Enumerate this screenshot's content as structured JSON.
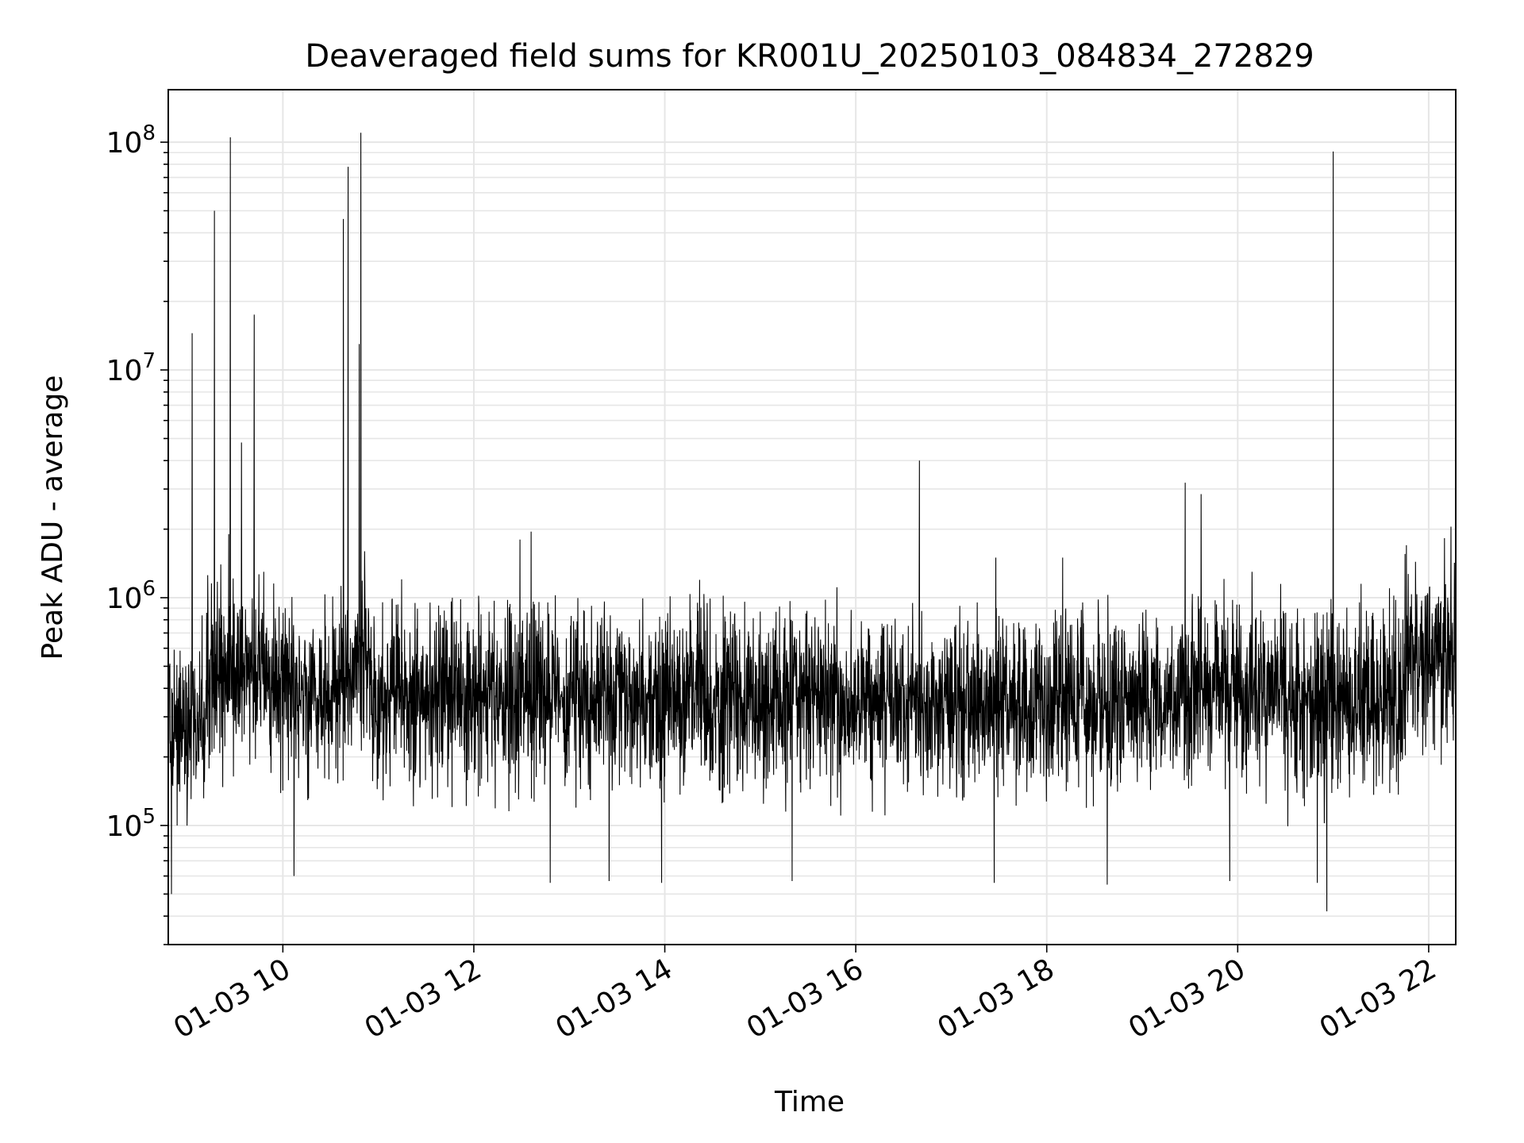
{
  "chart_data": {
    "type": "line",
    "title": "Deaveraged field sums for KR001U_20250103_084834_272829",
    "xlabel": "Time",
    "ylabel": "Peak ADU - average",
    "y_scale": "log",
    "ylim": [
      30000,
      170000000
    ],
    "x_range": [
      "2025-01-03 08:48",
      "2025-01-03 22:17"
    ],
    "grid": true,
    "line_color": "#000000",
    "grid_color": "#e6e6e6",
    "x_ticks": [
      {
        "t": "2025-01-03 10:00",
        "label": "01-03 10"
      },
      {
        "t": "2025-01-03 12:00",
        "label": "01-03 12"
      },
      {
        "t": "2025-01-03 14:00",
        "label": "01-03 14"
      },
      {
        "t": "2025-01-03 16:00",
        "label": "01-03 16"
      },
      {
        "t": "2025-01-03 18:00",
        "label": "01-03 18"
      },
      {
        "t": "2025-01-03 20:00",
        "label": "01-03 20"
      },
      {
        "t": "2025-01-03 22:00",
        "label": "01-03 22"
      }
    ],
    "y_ticks": [
      {
        "value": 100000,
        "base": "10",
        "exp": "5"
      },
      {
        "value": 1000000,
        "base": "10",
        "exp": "6"
      },
      {
        "value": 10000000,
        "base": "10",
        "exp": "7"
      },
      {
        "value": 100000000,
        "base": "10",
        "exp": "8"
      }
    ],
    "baseline_segments": [
      {
        "start": "2025-01-03 08:48",
        "end": "2025-01-03 09:12",
        "level": 280000
      },
      {
        "start": "2025-01-03 09:12",
        "end": "2025-01-03 09:40",
        "level": 450000
      },
      {
        "start": "2025-01-03 09:40",
        "end": "2025-01-03 10:35",
        "level": 380000
      },
      {
        "start": "2025-01-03 10:35",
        "end": "2025-01-03 10:55",
        "level": 480000
      },
      {
        "start": "2025-01-03 10:55",
        "end": "2025-01-03 15:50",
        "level": 370000
      },
      {
        "start": "2025-01-03 15:50",
        "end": "2025-01-03 19:25",
        "level": 340000
      },
      {
        "start": "2025-01-03 19:25",
        "end": "2025-01-03 20:30",
        "level": 390000
      },
      {
        "start": "2025-01-03 20:30",
        "end": "2025-01-03 21:45",
        "level": 340000
      },
      {
        "start": "2025-01-03 21:45",
        "end": "2025-01-03 22:17",
        "level": 560000
      }
    ],
    "spikes": [
      {
        "t": "2025-01-03 09:03",
        "value": 14500000
      },
      {
        "t": "2025-01-03 09:17",
        "value": 50000000
      },
      {
        "t": "2025-01-03 09:21",
        "value": 1400000
      },
      {
        "t": "2025-01-03 09:26",
        "value": 1900000
      },
      {
        "t": "2025-01-03 09:27",
        "value": 105000000
      },
      {
        "t": "2025-01-03 09:34",
        "value": 4800000
      },
      {
        "t": "2025-01-03 09:42",
        "value": 17500000
      },
      {
        "t": "2025-01-03 09:48",
        "value": 1300000
      },
      {
        "t": "2025-01-03 10:38",
        "value": 46000000
      },
      {
        "t": "2025-01-03 10:41",
        "value": 78000000
      },
      {
        "t": "2025-01-03 10:48",
        "value": 13000000
      },
      {
        "t": "2025-01-03 10:49",
        "value": 110000000
      },
      {
        "t": "2025-01-03 12:29",
        "value": 1800000
      },
      {
        "t": "2025-01-03 12:36",
        "value": 1950000
      },
      {
        "t": "2025-01-03 16:40",
        "value": 4000000
      },
      {
        "t": "2025-01-03 17:28",
        "value": 1500000
      },
      {
        "t": "2025-01-03 18:10",
        "value": 1500000
      },
      {
        "t": "2025-01-03 19:27",
        "value": 3200000
      },
      {
        "t": "2025-01-03 19:37",
        "value": 2850000
      },
      {
        "t": "2025-01-03 20:09",
        "value": 1300000
      },
      {
        "t": "2025-01-03 20:27",
        "value": 1150000
      },
      {
        "t": "2025-01-03 21:00",
        "value": 91000000
      },
      {
        "t": "2025-01-03 21:46",
        "value": 1700000
      },
      {
        "t": "2025-01-03 22:14",
        "value": 2050000
      }
    ],
    "dips": [
      {
        "t": "2025-01-03 08:50",
        "value": 50000
      },
      {
        "t": "2025-01-03 10:07",
        "value": 60000
      },
      {
        "t": "2025-01-03 12:48",
        "value": 56000
      },
      {
        "t": "2025-01-03 13:25",
        "value": 57000
      },
      {
        "t": "2025-01-03 13:58",
        "value": 56000
      },
      {
        "t": "2025-01-03 15:20",
        "value": 57000
      },
      {
        "t": "2025-01-03 17:27",
        "value": 56000
      },
      {
        "t": "2025-01-03 18:38",
        "value": 55000
      },
      {
        "t": "2025-01-03 19:55",
        "value": 57000
      },
      {
        "t": "2025-01-03 20:50",
        "value": 56000
      },
      {
        "t": "2025-01-03 20:56",
        "value": 42000
      }
    ]
  }
}
